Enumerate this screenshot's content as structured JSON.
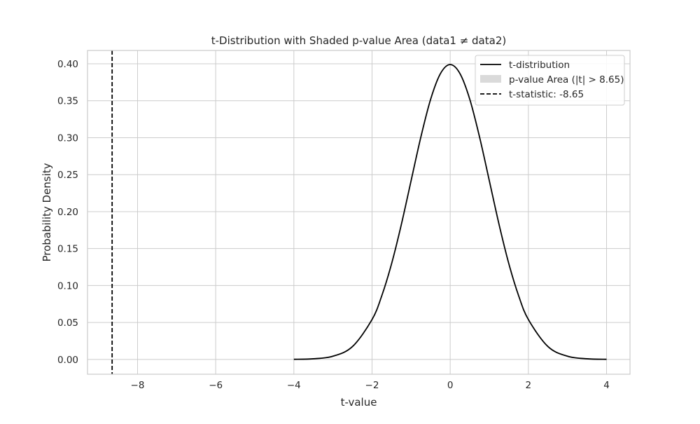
{
  "chart_data": {
    "type": "line",
    "title": "t-Distribution with Shaded p-value Area (data1 ≠ data2)",
    "xlabel": "t-value",
    "ylabel": "Probability Density",
    "xlim": [
      -9.28,
      4.6
    ],
    "ylim": [
      -0.02,
      0.418
    ],
    "grid": true,
    "legend_position": "top-right",
    "x_ticks": [
      -8,
      -6,
      -4,
      -2,
      0,
      2,
      4
    ],
    "x_tick_labels": [
      "−8",
      "−6",
      "−4",
      "−2",
      "0",
      "2",
      "4"
    ],
    "y_ticks": [
      0.0,
      0.05,
      0.1,
      0.15,
      0.2,
      0.25,
      0.3,
      0.35,
      0.4
    ],
    "y_tick_labels": [
      "0.00",
      "0.05",
      "0.10",
      "0.15",
      "0.20",
      "0.25",
      "0.30",
      "0.35",
      "0.40"
    ],
    "series": [
      {
        "name": "t-distribution",
        "style": "solid",
        "color": "#000000",
        "x": [
          -4.0,
          -3.5,
          -3.0,
          -2.5,
          -2.0,
          -1.75,
          -1.5,
          -1.25,
          -1.0,
          -0.75,
          -0.5,
          -0.25,
          0.0,
          0.25,
          0.5,
          0.75,
          1.0,
          1.25,
          1.5,
          1.75,
          2.0,
          2.5,
          3.0,
          3.5,
          4.0
        ],
        "y": [
          0.0002,
          0.0009,
          0.0044,
          0.0175,
          0.054,
          0.0863,
          0.1295,
          0.1826,
          0.242,
          0.3011,
          0.3521,
          0.3867,
          0.3989,
          0.3867,
          0.3521,
          0.3011,
          0.242,
          0.1826,
          0.1295,
          0.0863,
          0.054,
          0.0175,
          0.0044,
          0.0009,
          0.0002
        ]
      }
    ],
    "shaded_area": {
      "name": "p-value Area (|t| > 8.65)",
      "color": "#d3d3d3",
      "threshold": 8.65
    },
    "vertical_line": {
      "name": "t-statistic: -8.65",
      "x": -8.65,
      "style": "dashed",
      "color": "#000000"
    }
  }
}
